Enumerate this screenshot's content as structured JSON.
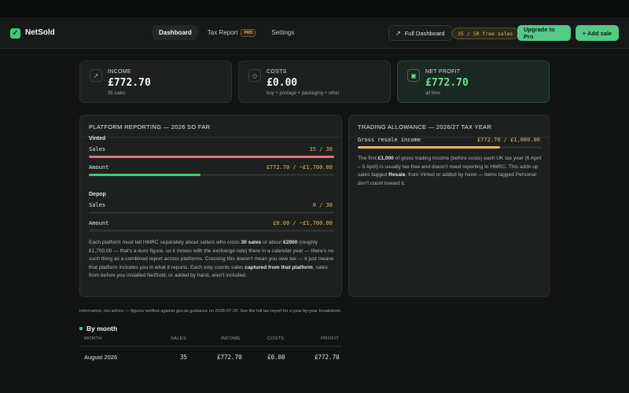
{
  "app": {
    "name": "NetSold"
  },
  "nav": {
    "dashboard": "Dashboard",
    "tax_report": "Tax Report",
    "pro_badge": "PRO",
    "settings": "Settings"
  },
  "actions": {
    "full_dashboard": "Full Dashboard",
    "free_sales": "35 / 50 free sales",
    "upgrade": "Upgrade to Pro",
    "add_sale": "+ Add sale"
  },
  "stats": {
    "income": {
      "label": "INCOME",
      "value": "£772.70",
      "sub": "35 sales",
      "icon": "trend-up-icon"
    },
    "costs": {
      "label": "COSTS",
      "value": "£0.00",
      "sub": "buy + postage + packaging + other",
      "icon": "tag-icon"
    },
    "profit": {
      "label": "NET PROFIT",
      "value": "£772.70",
      "sub": "all time",
      "icon": "wallet-icon"
    }
  },
  "platform": {
    "title": "PLATFORM REPORTING — 2026 SO FAR",
    "vinted": {
      "name": "Vinted",
      "sales_label": "Sales",
      "sales_value": "35 / 30",
      "sales_fraction": 1.0,
      "sales_color": "#e2737a",
      "amount_label": "Amount",
      "amount_value": "£772.70 / ~£1,700.00",
      "amount_fraction": 0.455,
      "amount_color": "#3ecb7c"
    },
    "depop": {
      "name": "Depop",
      "sales_label": "Sales",
      "sales_value": "0 / 30",
      "sales_fraction": 0,
      "amount_label": "Amount",
      "amount_value": "£0.00 / ~£1,700.00",
      "amount_fraction": 0
    },
    "note": {
      "p1": "Each platform must tell HMRC separately about sellers who cross ",
      "b1": "30 sales",
      "p2": " or about ",
      "b2": "€2000",
      "p3": " (roughly £1,700.00 — that's a euro figure, so it moves with the exchange rate) there in a calendar year — there's no such thing as a combined report across platforms. Crossing this doesn't mean you owe tax — it just means that platform includes you in what it reports. Each only counts sales ",
      "b3": "captured from that platform",
      "p4": "; sales from before you installed NetSold, or added by hand, aren't included."
    }
  },
  "allowance": {
    "title": "TRADING ALLOWANCE — 2026/27 TAX YEAR",
    "row_label": "Gross resale income",
    "row_value": "£772.70 / £1,000.00",
    "fraction": 0.773,
    "bar_color": "#e0b866",
    "note": {
      "p1": "The first ",
      "b1": "£1,000",
      "p2": " of gross trading income (before costs) each UK tax year (6 April – 5 April) is usually tax-free and doesn't need reporting to HMRC. This adds up sales tagged ",
      "b2": "Resale",
      "p3": ", from Vinted or added by hand — items tagged Personal don't count toward it."
    }
  },
  "footnote": "Information, not advice — figures verified against gov.uk guidance on 2026-07-20. See the full tax report for a year-by-year breakdown.",
  "by_month": {
    "title": "By month",
    "headers": {
      "month": "MONTH",
      "sales": "SALES",
      "income": "INCOME",
      "costs": "COSTS",
      "profit": "PROFIT"
    },
    "rows": [
      {
        "month": "August 2026",
        "sales": "35",
        "income": "£772.70",
        "costs": "£0.00",
        "profit": "£772.70"
      }
    ]
  }
}
